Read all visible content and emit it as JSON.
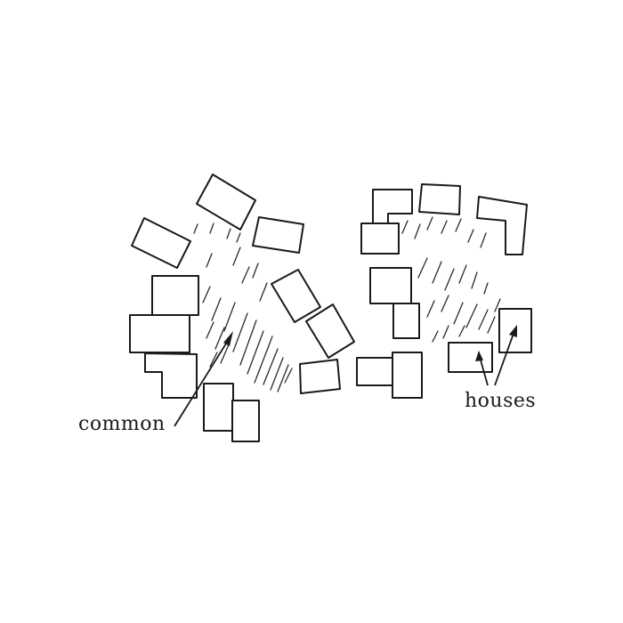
{
  "labels": {
    "common": "common",
    "houses": "houses"
  },
  "colors": {
    "ink": "#1a1a1a",
    "paper": "#ffffff"
  }
}
